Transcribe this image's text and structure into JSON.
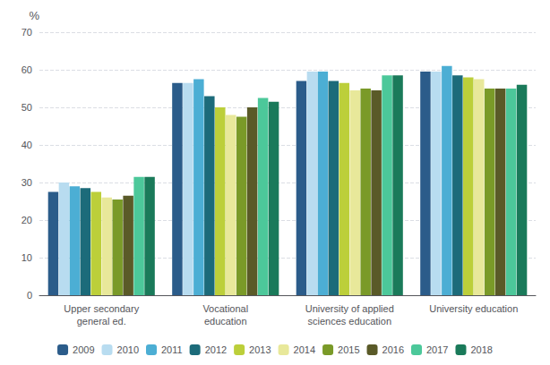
{
  "chart_data": {
    "type": "bar",
    "ylabel": "%",
    "categories": [
      "Upper secondary\ngeneral ed.",
      "Vocational\neducation",
      "University of applied\nsciences education",
      "University education"
    ],
    "series": [
      {
        "name": "2009",
        "color": "#2B5C8A",
        "values": [
          27.5,
          56.5,
          57.0,
          59.5
        ]
      },
      {
        "name": "2010",
        "color": "#B8DCF0",
        "values": [
          30.0,
          56.5,
          59.5,
          59.5
        ]
      },
      {
        "name": "2011",
        "color": "#4CAED4",
        "values": [
          29.0,
          57.5,
          59.5,
          61.0
        ]
      },
      {
        "name": "2012",
        "color": "#1C6B7A",
        "values": [
          28.5,
          53.0,
          57.0,
          58.5
        ]
      },
      {
        "name": "2013",
        "color": "#BCCF3A",
        "values": [
          27.5,
          50.0,
          56.5,
          58.0
        ]
      },
      {
        "name": "2014",
        "color": "#E8E89A",
        "values": [
          26.0,
          48.0,
          54.5,
          57.5
        ]
      },
      {
        "name": "2015",
        "color": "#7A9A28",
        "values": [
          25.5,
          47.5,
          55.0,
          55.0
        ]
      },
      {
        "name": "2016",
        "color": "#5A5A28",
        "values": [
          26.5,
          50.0,
          54.5,
          55.0
        ]
      },
      {
        "name": "2017",
        "color": "#4CC89A",
        "values": [
          31.5,
          52.5,
          58.5,
          55.0
        ]
      },
      {
        "name": "2018",
        "color": "#1A7A5A",
        "values": [
          31.5,
          51.5,
          58.5,
          56.0
        ]
      }
    ],
    "ylim": [
      0,
      70
    ],
    "yticks": [
      0,
      10,
      20,
      30,
      40,
      50,
      60,
      70
    ],
    "grid": true,
    "legend": "bottom"
  }
}
